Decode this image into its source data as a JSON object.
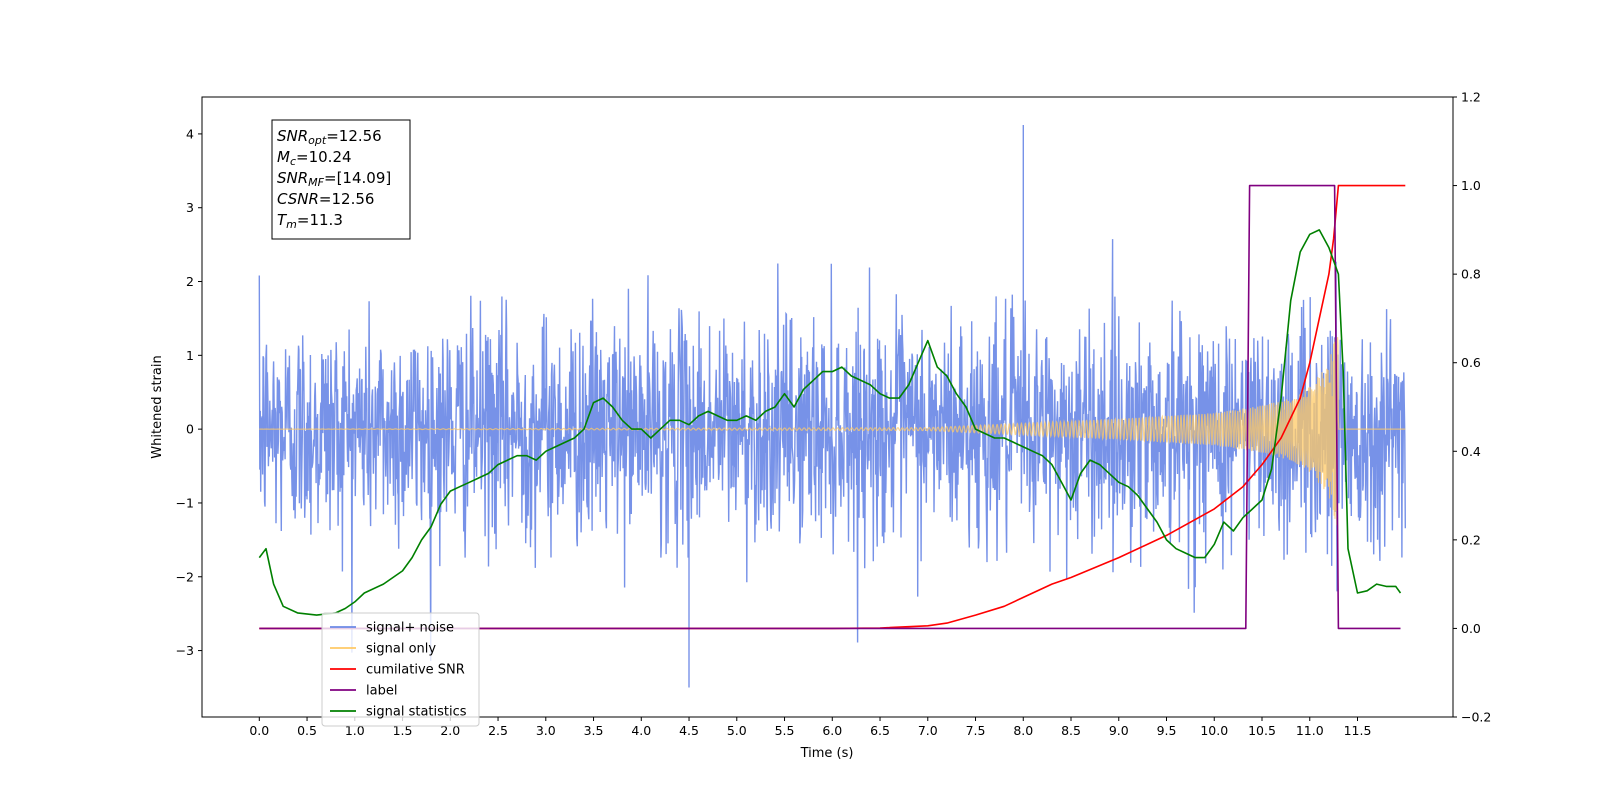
{
  "chart_data": {
    "type": "line",
    "xlabel": "Time (s)",
    "ylabel_left": "Whitened strain",
    "ylabel_right": "",
    "xlim": [
      -0.6,
      12.5
    ],
    "ylim_left": [
      -3.9,
      4.5
    ],
    "ylim_right": [
      -0.2,
      1.2
    ],
    "x_ticks": [
      0.0,
      0.5,
      1.0,
      1.5,
      2.0,
      2.5,
      3.0,
      3.5,
      4.0,
      4.5,
      5.0,
      5.5,
      6.0,
      6.5,
      7.0,
      7.5,
      8.0,
      8.5,
      9.0,
      9.5,
      10.0,
      10.5,
      11.0,
      11.5
    ],
    "x_tick_labels": [
      "0.0",
      "0.5",
      "1.0",
      "1.5",
      "2.0",
      "2.5",
      "3.0",
      "3.5",
      "4.0",
      "4.5",
      "5.0",
      "5.5",
      "6.0",
      "6.5",
      "7.0",
      "7.5",
      "8.0",
      "8.5",
      "9.0",
      "9.5",
      "10.0",
      "10.5",
      "11.0",
      "11.5"
    ],
    "y_left_ticks": [
      -3,
      -2,
      -1,
      0,
      1,
      2,
      3,
      4
    ],
    "y_left_tick_labels": [
      "−3",
      "−2",
      "−1",
      "0",
      "1",
      "2",
      "3",
      "4"
    ],
    "y_right_ticks": [
      -0.2,
      0.0,
      0.2,
      0.4,
      0.6,
      0.8,
      1.0,
      1.2
    ],
    "y_right_tick_labels": [
      "−0.2",
      "0.0",
      "0.2",
      "0.4",
      "0.6",
      "0.8",
      "1.0",
      "1.2"
    ],
    "grid": false,
    "legend_position": "lower-left",
    "legend": [
      {
        "label": "signal+ noise",
        "color": "#6b89e6"
      },
      {
        "label": "signal only",
        "color": "#ffc966"
      },
      {
        "label": "cumilative SNR",
        "color": "#ff0000"
      },
      {
        "label": "label",
        "color": "#800080"
      },
      {
        "label": "signal statistics",
        "color": "#008000"
      }
    ],
    "info_box": [
      {
        "main": "SNR",
        "sub": "opt",
        "rest": "=12.56"
      },
      {
        "main": "M",
        "sub": "c",
        "rest": "=10.24"
      },
      {
        "main": "SNR",
        "sub": "MF",
        "rest": "=[14.09]"
      },
      {
        "main": "CSNR",
        "sub": "",
        "rest": "=12.56"
      },
      {
        "main": "T",
        "sub": "m",
        "rest": "=11.3"
      }
    ],
    "series": [
      {
        "name": "signal+ noise",
        "axis": "left",
        "color": "#6b89e6",
        "description_of_generation": "",
        "t_range": [
          0.0,
          12.0
        ],
        "noise_sigma": 0.75,
        "spike_max": 4.12,
        "spike_min": -3.5,
        "max_time": 8.0,
        "min_time": 4.5
      },
      {
        "name": "signal only",
        "axis": "left",
        "color": "#ffc966",
        "t_range": [
          0.0,
          12.0
        ],
        "merger_time": 11.3,
        "peak_amplitude": 1.4,
        "envelope_x": [
          0.0,
          7.0,
          8.0,
          9.0,
          9.5,
          10.0,
          10.5,
          10.8,
          11.0,
          11.2,
          11.3
        ],
        "envelope_y": [
          0.0,
          0.02,
          0.08,
          0.14,
          0.18,
          0.22,
          0.32,
          0.42,
          0.58,
          0.9,
          1.4
        ]
      },
      {
        "name": "cumilative SNR",
        "axis": "right",
        "color": "#ff0000",
        "x": [
          0.0,
          6.0,
          6.5,
          7.0,
          7.2,
          7.5,
          7.8,
          8.0,
          8.3,
          8.5,
          9.0,
          9.5,
          10.0,
          10.3,
          10.5,
          10.7,
          10.9,
          11.0,
          11.1,
          11.2,
          11.25,
          11.3,
          12.0
        ],
        "y": [
          0.0,
          0.0,
          0.001,
          0.006,
          0.012,
          0.03,
          0.05,
          0.07,
          0.1,
          0.115,
          0.16,
          0.21,
          0.27,
          0.32,
          0.37,
          0.43,
          0.52,
          0.6,
          0.7,
          0.8,
          0.88,
          1.0,
          1.0
        ]
      },
      {
        "name": "label",
        "axis": "right",
        "color": "#800080",
        "x": [
          0.0,
          10.33,
          10.37,
          11.26,
          11.3,
          11.95
        ],
        "y": [
          0.0,
          0.0,
          1.0,
          1.0,
          0.0,
          0.0
        ]
      },
      {
        "name": "signal statistics",
        "axis": "right",
        "color": "#008000",
        "x": [
          0.0,
          0.07,
          0.15,
          0.25,
          0.4,
          0.6,
          0.8,
          0.9,
          1.0,
          1.1,
          1.3,
          1.5,
          1.6,
          1.7,
          1.8,
          1.9,
          2.0,
          2.1,
          2.2,
          2.3,
          2.4,
          2.5,
          2.6,
          2.7,
          2.8,
          2.9,
          3.0,
          3.1,
          3.2,
          3.3,
          3.4,
          3.5,
          3.6,
          3.7,
          3.8,
          3.9,
          4.0,
          4.1,
          4.2,
          4.3,
          4.4,
          4.5,
          4.6,
          4.7,
          4.8,
          4.9,
          5.0,
          5.1,
          5.2,
          5.3,
          5.4,
          5.5,
          5.6,
          5.7,
          5.8,
          5.9,
          6.0,
          6.1,
          6.2,
          6.3,
          6.4,
          6.5,
          6.6,
          6.7,
          6.8,
          6.9,
          7.0,
          7.1,
          7.2,
          7.3,
          7.4,
          7.5,
          7.6,
          7.7,
          7.8,
          7.9,
          8.0,
          8.1,
          8.2,
          8.3,
          8.4,
          8.5,
          8.6,
          8.7,
          8.8,
          8.9,
          9.0,
          9.1,
          9.2,
          9.3,
          9.4,
          9.5,
          9.6,
          9.7,
          9.8,
          9.9,
          10.0,
          10.1,
          10.2,
          10.3,
          10.4,
          10.5,
          10.6,
          10.7,
          10.8,
          10.9,
          11.0,
          11.1,
          11.2,
          11.3,
          11.35,
          11.4,
          11.5,
          11.6,
          11.7,
          11.8,
          11.9,
          11.95
        ],
        "y": [
          0.16,
          0.18,
          0.1,
          0.05,
          0.035,
          0.03,
          0.035,
          0.045,
          0.06,
          0.08,
          0.1,
          0.13,
          0.16,
          0.2,
          0.23,
          0.28,
          0.31,
          0.32,
          0.33,
          0.34,
          0.35,
          0.37,
          0.38,
          0.39,
          0.39,
          0.38,
          0.4,
          0.41,
          0.42,
          0.43,
          0.45,
          0.51,
          0.52,
          0.5,
          0.47,
          0.45,
          0.45,
          0.43,
          0.45,
          0.47,
          0.47,
          0.46,
          0.48,
          0.49,
          0.48,
          0.47,
          0.47,
          0.48,
          0.47,
          0.49,
          0.5,
          0.53,
          0.5,
          0.54,
          0.56,
          0.58,
          0.58,
          0.59,
          0.57,
          0.56,
          0.55,
          0.53,
          0.52,
          0.52,
          0.55,
          0.6,
          0.65,
          0.59,
          0.57,
          0.53,
          0.5,
          0.45,
          0.44,
          0.43,
          0.43,
          0.42,
          0.41,
          0.4,
          0.39,
          0.37,
          0.33,
          0.29,
          0.35,
          0.38,
          0.37,
          0.35,
          0.33,
          0.32,
          0.3,
          0.27,
          0.24,
          0.2,
          0.18,
          0.17,
          0.16,
          0.16,
          0.19,
          0.24,
          0.22,
          0.25,
          0.27,
          0.29,
          0.36,
          0.52,
          0.74,
          0.85,
          0.89,
          0.9,
          0.86,
          0.8,
          0.58,
          0.18,
          0.08,
          0.085,
          0.1,
          0.095,
          0.095,
          0.08
        ]
      }
    ]
  }
}
